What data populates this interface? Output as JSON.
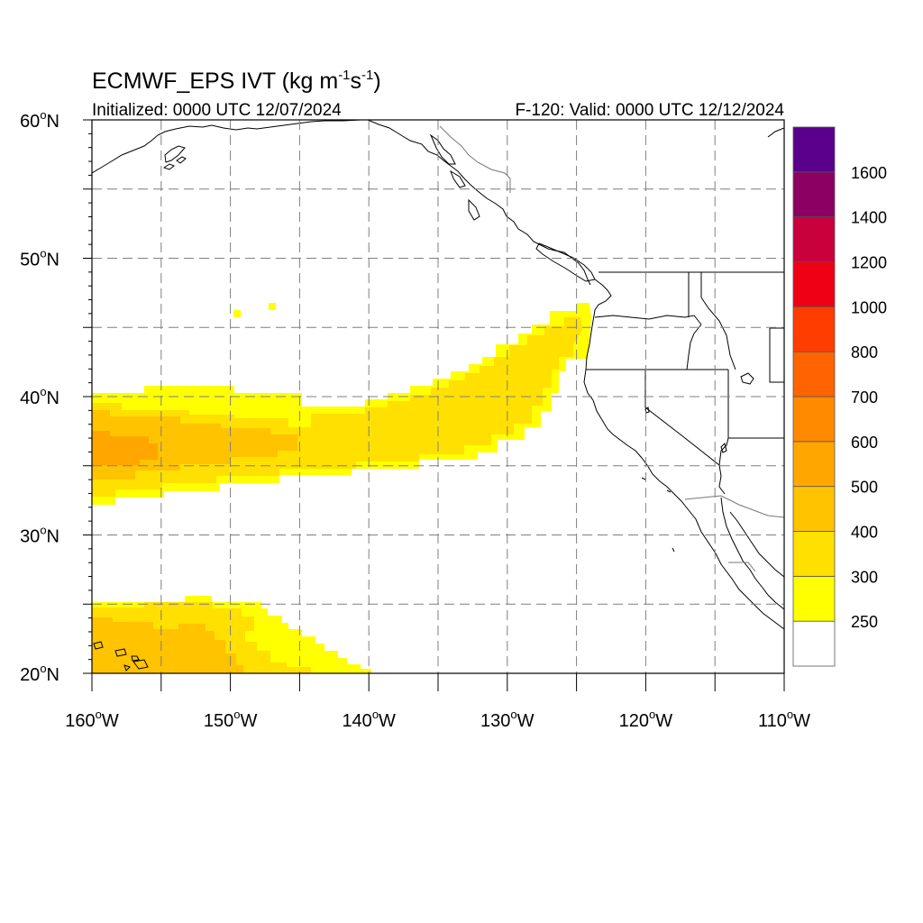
{
  "map": {
    "title": "ECMWF_EPS IVT (kg m",
    "title_exp1": "-1",
    "title_mid": "s",
    "title_exp2": "-1",
    "title_end": ")",
    "initialized": "Initialized: 0000 UTC 12/07/2024",
    "valid": "F-120: Valid: 0000 UTC 12/12/2024",
    "extent": {
      "lon_min": -160,
      "lon_max": -110,
      "lat_min": 20,
      "lat_max": 60
    },
    "lon_ticks": [
      {
        "value": -160,
        "label": "160",
        "hemi": "W"
      },
      {
        "value": -150,
        "label": "150",
        "hemi": "W"
      },
      {
        "value": -140,
        "label": "140",
        "hemi": "W"
      },
      {
        "value": -130,
        "label": "130",
        "hemi": "W"
      },
      {
        "value": -120,
        "label": "120",
        "hemi": "W"
      },
      {
        "value": -110,
        "label": "110",
        "hemi": "W"
      }
    ],
    "lat_ticks": [
      {
        "value": 60,
        "label": "60",
        "hemi": "N"
      },
      {
        "value": 50,
        "label": "50",
        "hemi": "N"
      },
      {
        "value": 40,
        "label": "40",
        "hemi": "N"
      },
      {
        "value": 30,
        "label": "30",
        "hemi": "N"
      },
      {
        "value": 20,
        "label": "20",
        "hemi": "N"
      }
    ],
    "degree_symbol": "o",
    "grid": "dashed, every 5 degrees",
    "colors": {
      "coast": "#000000",
      "grid": "#7f7f7f",
      "c250": "#ffff00",
      "c300": "#ffe000",
      "c400": "#ffc300",
      "c500": "#ffa700"
    }
  },
  "colorbar": {
    "labels": [
      "250",
      "300",
      "400",
      "500",
      "600",
      "700",
      "800",
      "1000",
      "1200",
      "1400",
      "1600"
    ],
    "colors": [
      "#ffffff",
      "#ffff00",
      "#ffe000",
      "#ffc300",
      "#ffa700",
      "#ff8a00",
      "#ff6400",
      "#ff3d00",
      "#f00014",
      "#c8003c",
      "#8c0064",
      "#5a008c"
    ]
  },
  "chart_data": {
    "type": "heatmap",
    "variable": "IVT",
    "units": "kg m-1 s-1",
    "levels": [
      250,
      300,
      400,
      500,
      600,
      700,
      800,
      1000,
      1200,
      1400,
      1600
    ],
    "features": [
      {
        "region": "atmospheric river core",
        "lon_range": [
          -160,
          -124
        ],
        "lat_range": [
          33,
          47
        ],
        "max_level": 500
      },
      {
        "region": "subtropical plume near Hawaii",
        "lon_range": [
          -160,
          -140
        ],
        "lat_range": [
          20,
          25.5
        ],
        "max_level": 400
      }
    ]
  }
}
